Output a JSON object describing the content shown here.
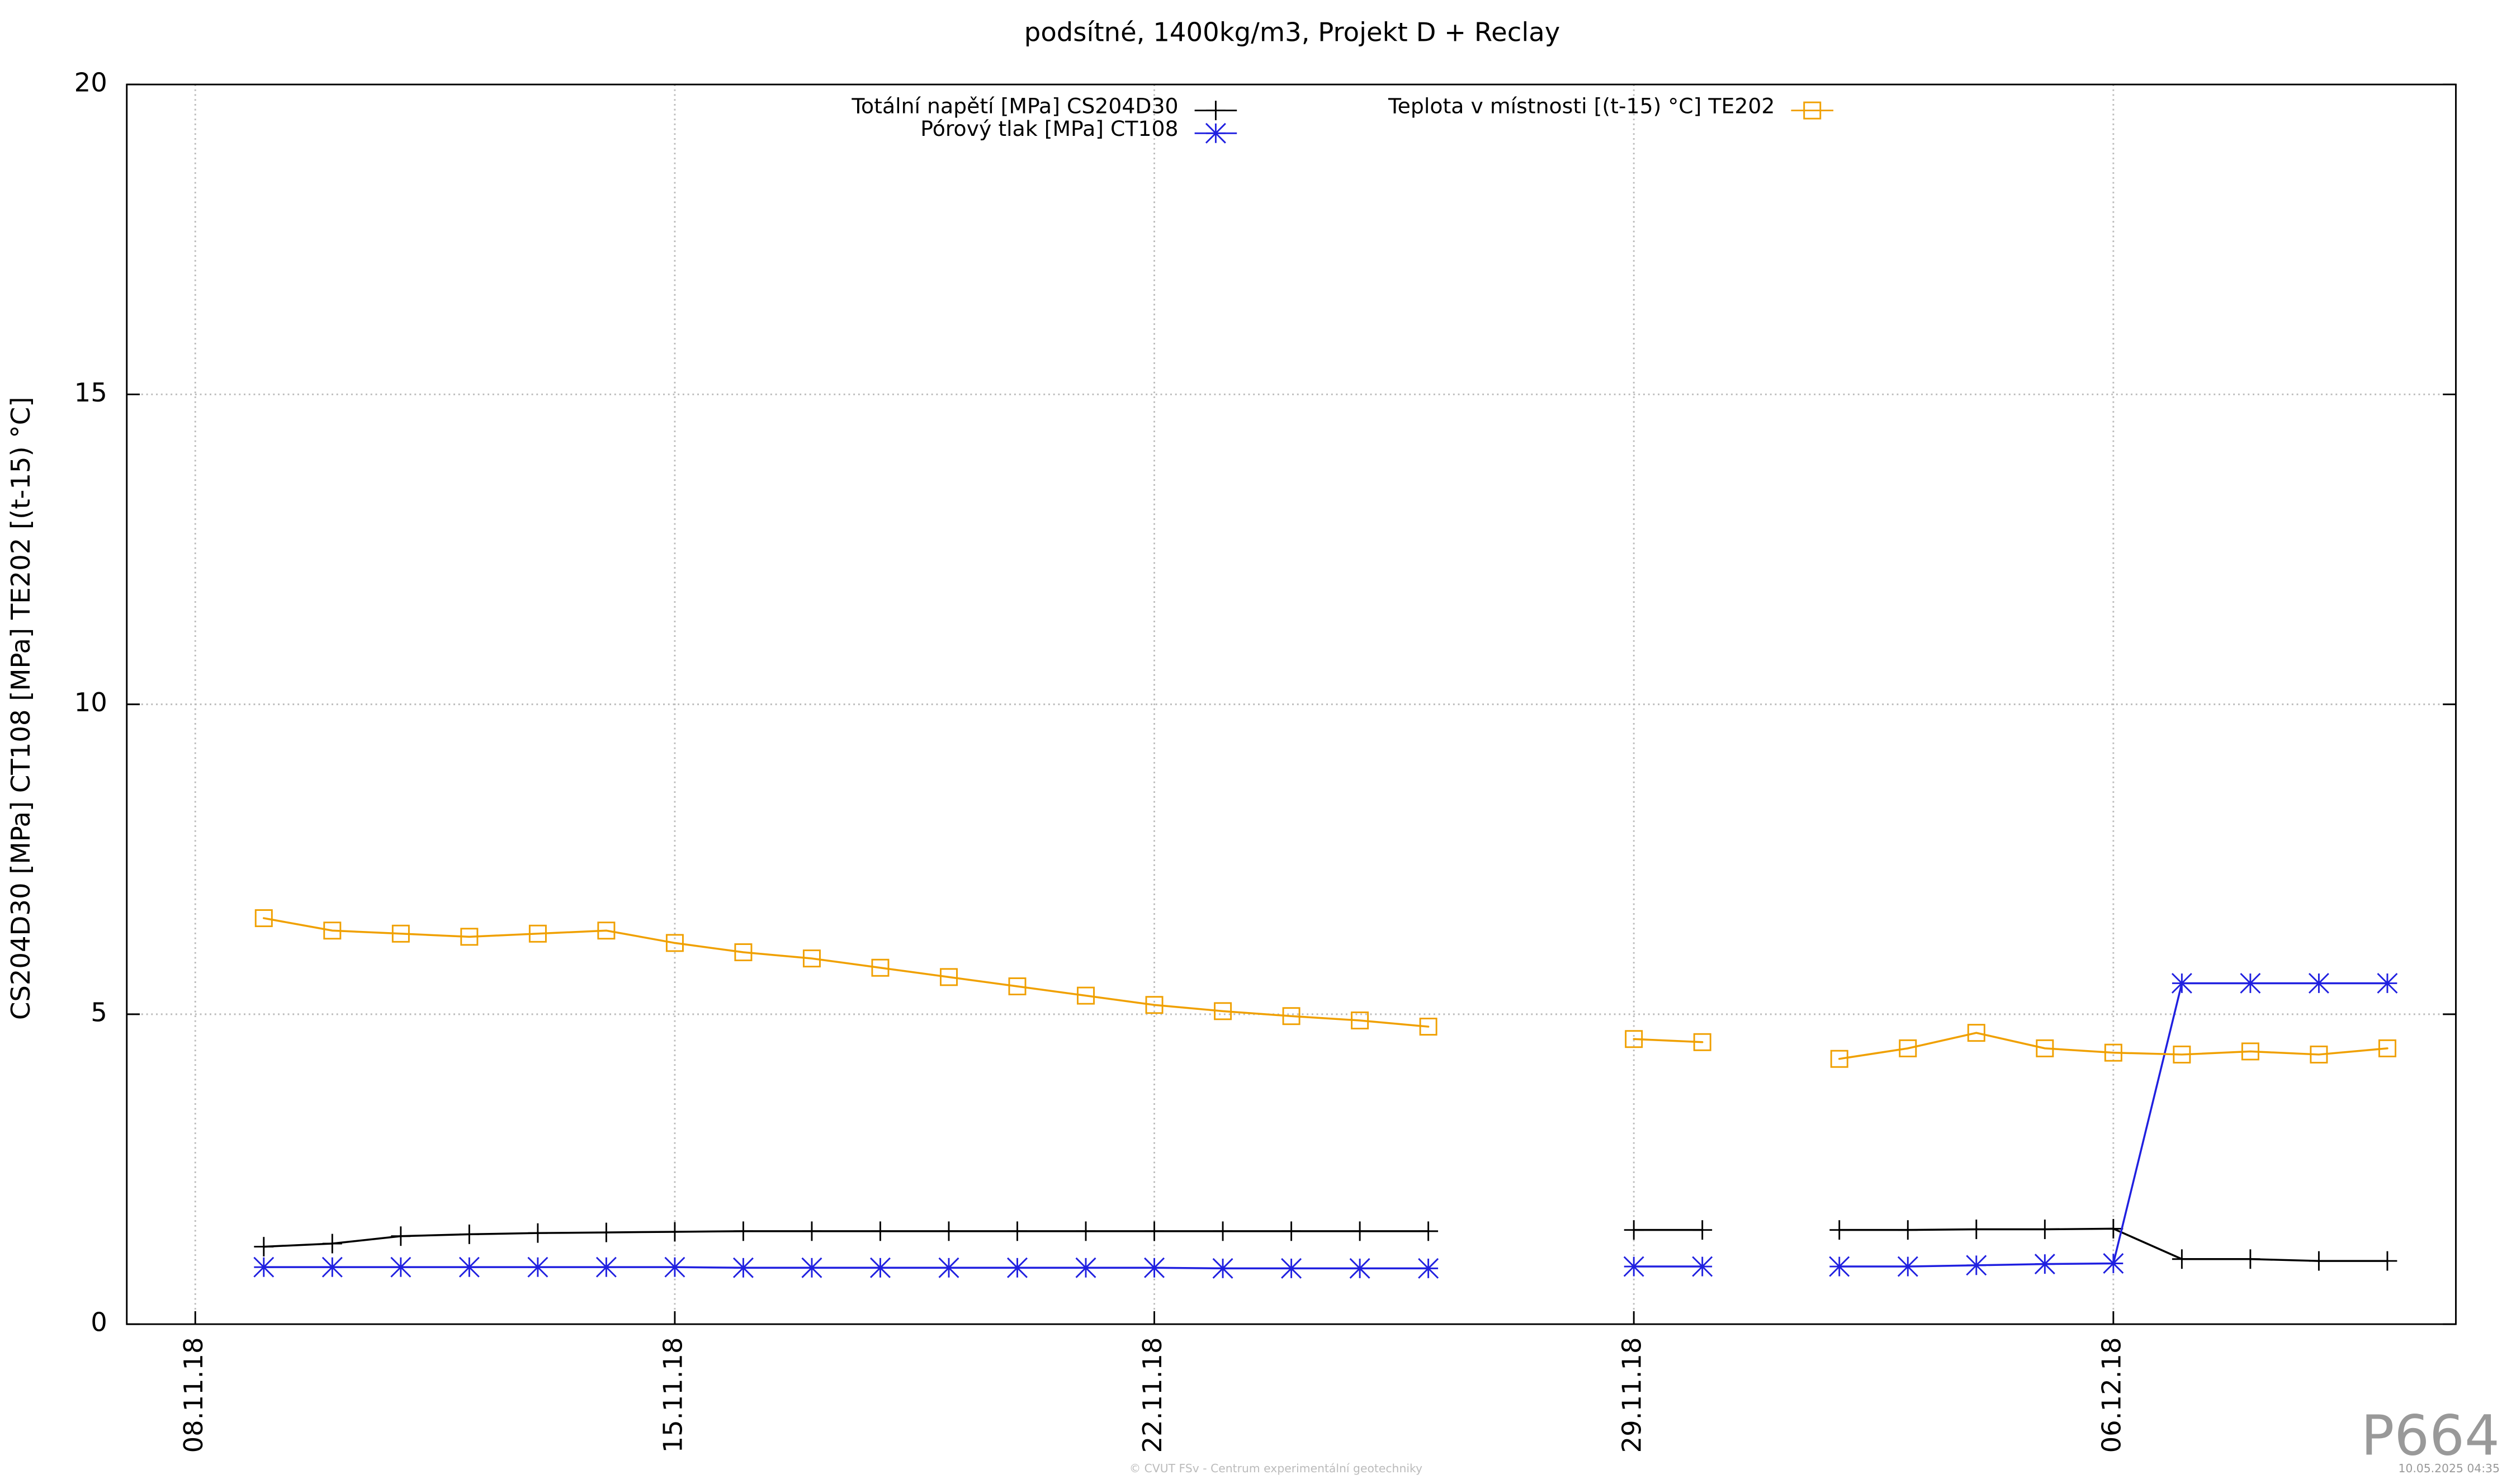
{
  "chart_data": {
    "type": "line",
    "title": "podsítné, 1400kg/m3, Projekt D + Reclay",
    "y_label": "CS204D30 [MPa] CT108 [MPa] TE202 [(t-15) °C]",
    "x": [
      "09.11.18",
      "10.11.18",
      "11.11.18",
      "12.11.18",
      "13.11.18",
      "14.11.18",
      "15.11.18",
      "16.11.18",
      "17.11.18",
      "18.11.18",
      "19.11.18",
      "20.11.18",
      "21.11.18",
      "22.11.18",
      "23.11.18",
      "24.11.18",
      "25.11.18",
      "26.11.18",
      "27.11.18",
      "28.11.18",
      "29.11.18",
      "30.11.18",
      "01.12.18",
      "02.12.18",
      "03.12.18",
      "04.12.18",
      "05.12.18",
      "06.12.18",
      "07.12.18",
      "08.12.18",
      "09.12.18",
      "10.12.18"
    ],
    "series": [
      {
        "name": "Totální napětí [MPa] CS204D30",
        "color": "#000000",
        "marker": "plus",
        "values": [
          1.25,
          1.3,
          1.42,
          1.45,
          1.47,
          1.48,
          1.49,
          1.5,
          1.5,
          1.5,
          1.5,
          1.5,
          1.5,
          1.5,
          1.5,
          1.5,
          1.5,
          1.5,
          null,
          null,
          1.52,
          1.52,
          null,
          1.52,
          1.52,
          1.53,
          1.53,
          1.54,
          1.05,
          1.05,
          1.02,
          1.02
        ]
      },
      {
        "name": "Pórový tlak [MPa] CT108",
        "color": "#2020e0",
        "marker": "star",
        "values": [
          0.92,
          0.92,
          0.92,
          0.92,
          0.92,
          0.92,
          0.92,
          0.91,
          0.91,
          0.91,
          0.91,
          0.91,
          0.91,
          0.91,
          0.9,
          0.9,
          0.9,
          0.9,
          null,
          null,
          0.93,
          0.93,
          null,
          0.93,
          0.93,
          0.95,
          0.97,
          0.98,
          5.5,
          5.5,
          5.5,
          5.5
        ]
      },
      {
        "name": "Teplota v místnosti [(t-15) °C] TE202",
        "color": "#f0a000",
        "marker": "square",
        "values": [
          6.55,
          6.35,
          6.3,
          6.25,
          6.3,
          6.35,
          6.15,
          6.0,
          5.9,
          5.75,
          5.6,
          5.45,
          5.3,
          5.15,
          5.05,
          4.97,
          4.9,
          4.8,
          null,
          null,
          4.6,
          4.55,
          null,
          4.28,
          4.45,
          4.7,
          4.45,
          4.38,
          4.35,
          4.4,
          4.35,
          4.45
        ]
      }
    ],
    "xlim": [
      "07.11.18",
      "11.12.18"
    ],
    "xticks": [
      "08.11.18",
      "15.11.18",
      "22.11.18",
      "29.11.18",
      "06.12.18"
    ],
    "ylim": [
      0,
      20
    ],
    "yticks": [
      0,
      5,
      10,
      15,
      20
    ],
    "grid": true
  },
  "footer": {
    "code": "P664",
    "copyright": "© CVUT FSv - Centrum experimentální geotechniky",
    "timestamp": "10.05.2025 04:35"
  }
}
